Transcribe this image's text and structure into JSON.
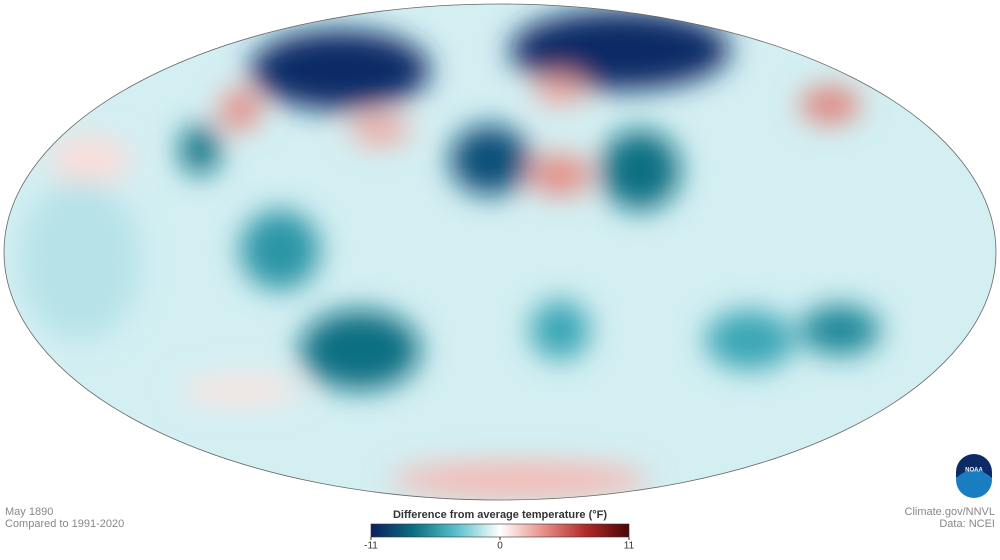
{
  "caption": {
    "date": "May 1890",
    "baseline": "Compared to 1991-2020"
  },
  "legend": {
    "title": "Difference from average temperature (°F)",
    "range": [
      -11,
      11
    ],
    "ticks": [
      -11,
      0,
      11
    ],
    "colors": [
      "#0b1f5e",
      "#0d6f82",
      "#5cc1cc",
      "#ffffff",
      "#e8908a",
      "#b02a2a",
      "#4a0606"
    ]
  },
  "credits": {
    "source": "Climate.gov/NNVL",
    "data": "Data: NCEI"
  },
  "logo": "NOAA"
}
